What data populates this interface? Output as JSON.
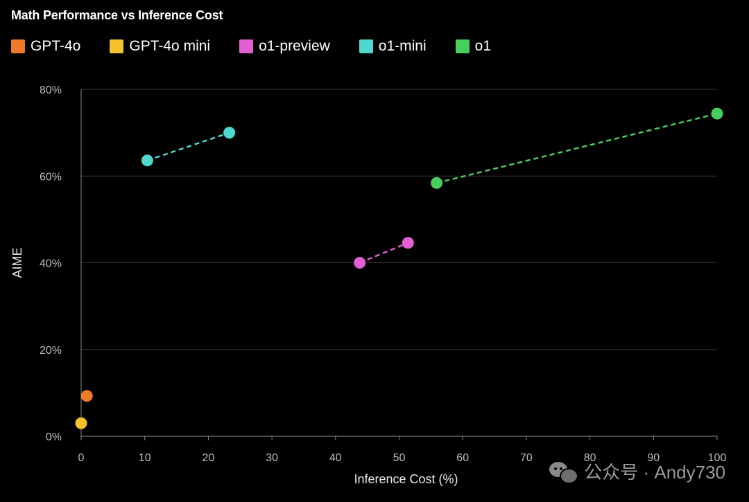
{
  "chart_data": {
    "type": "scatter",
    "title": "Math Performance vs Inference Cost",
    "xlabel": "Inference Cost (%)",
    "ylabel": "AIME",
    "xlim": [
      0,
      100
    ],
    "ylim": [
      0,
      80
    ],
    "x_ticks": [
      0,
      10,
      20,
      30,
      40,
      50,
      60,
      70,
      80,
      90,
      100
    ],
    "y_ticks": [
      0,
      20,
      40,
      60,
      80
    ],
    "y_tick_labels": [
      "0%",
      "20%",
      "40%",
      "60%",
      "80%"
    ],
    "grid": "horizontal",
    "legend_position": "top-left",
    "series": [
      {
        "name": "GPT-4o",
        "color": "#f07a2c",
        "connected": false,
        "points": [
          {
            "x": 0.9,
            "y": 9.3
          }
        ]
      },
      {
        "name": "GPT-4o mini",
        "color": "#f5c22e",
        "connected": false,
        "points": [
          {
            "x": 0.0,
            "y": 3.0
          }
        ]
      },
      {
        "name": "o1-preview",
        "color": "#e35ed3",
        "connected": true,
        "points": [
          {
            "x": 43.8,
            "y": 40.0
          },
          {
            "x": 51.4,
            "y": 44.6
          }
        ]
      },
      {
        "name": "o1-mini",
        "color": "#4fd8cf",
        "connected": true,
        "points": [
          {
            "x": 10.4,
            "y": 63.6
          },
          {
            "x": 23.3,
            "y": 70.0
          }
        ]
      },
      {
        "name": "o1",
        "color": "#47cf5d",
        "connected": true,
        "points": [
          {
            "x": 55.9,
            "y": 58.4
          },
          {
            "x": 100.0,
            "y": 74.4
          }
        ]
      }
    ]
  },
  "watermark": {
    "text": "公众号 · Andy730"
  }
}
